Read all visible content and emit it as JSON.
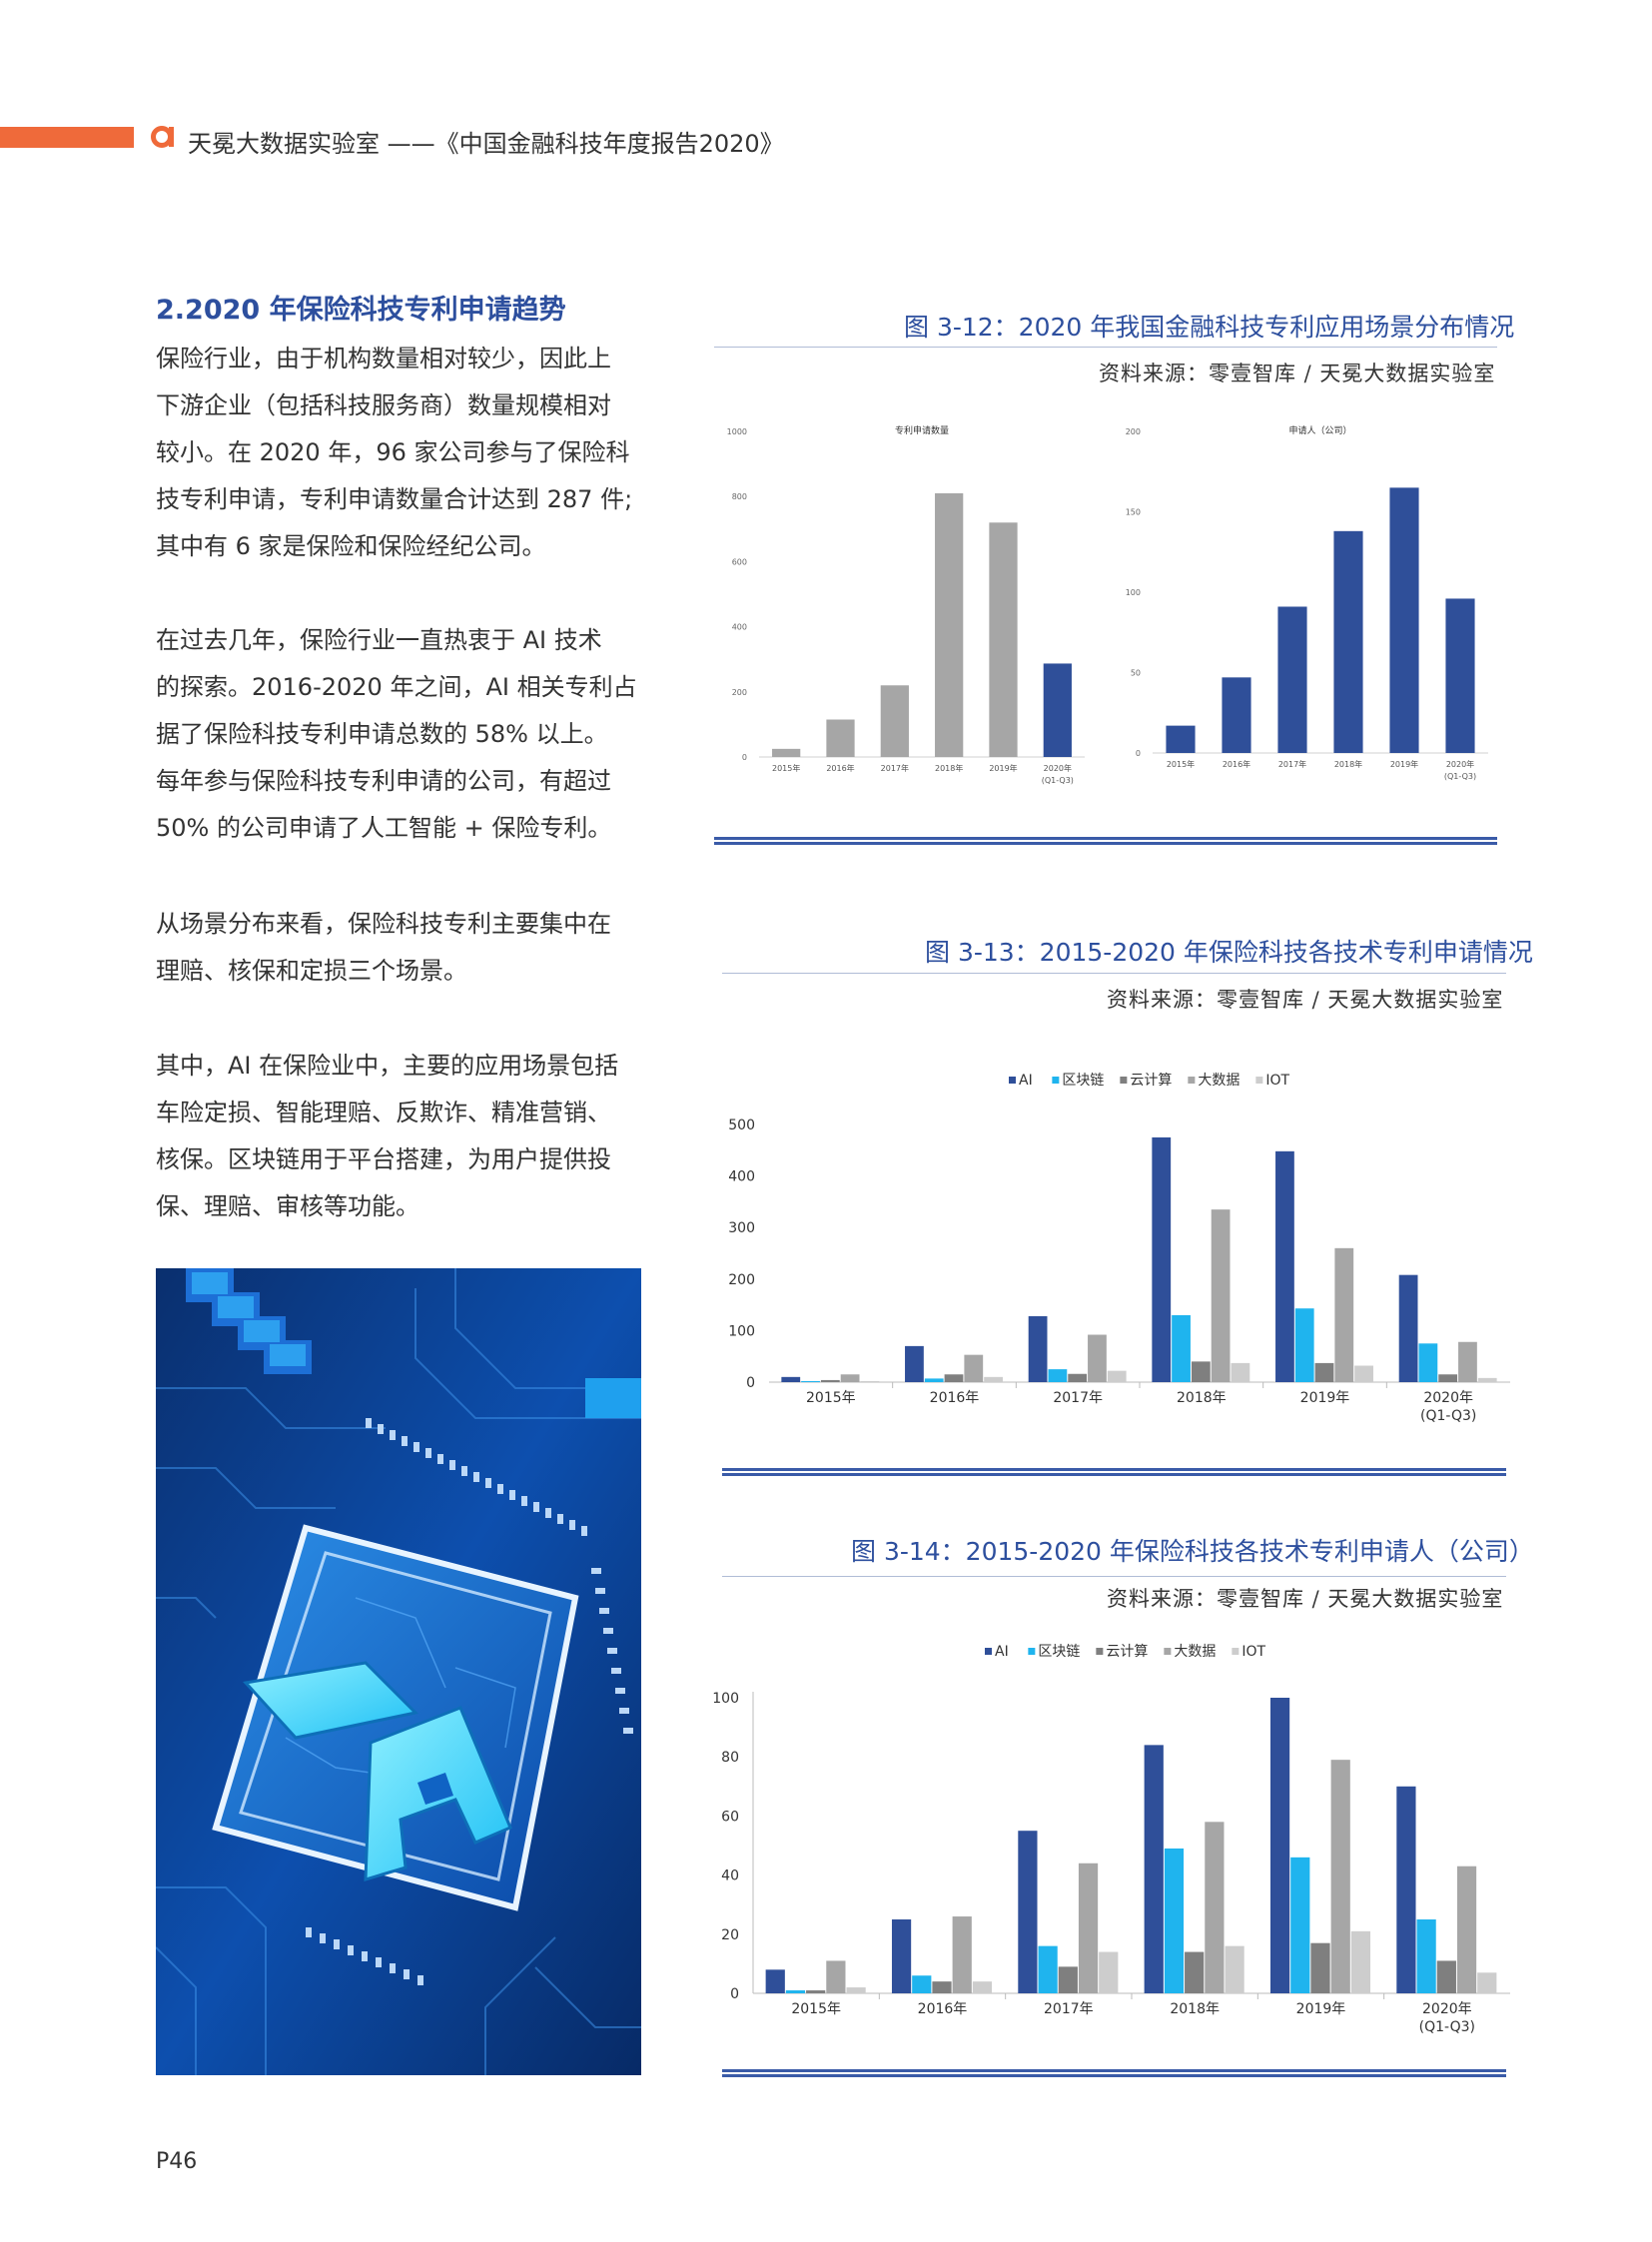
{
  "header": {
    "text": "天冕大数据实验室 ——《中国金融科技年度报告2020》",
    "accent_color": "#ef6a3a",
    "logo_icon": "orange-a-logo-icon"
  },
  "section": {
    "title": "2.2020 年保险科技专利申请趋势",
    "paragraphs": [
      [
        "保险行业，由于机构数量相对较少，因此上",
        "下游企业（包括科技服务商）数量规模相对",
        "较小。在 2020 年，96 家公司参与了保险科",
        "技专利申请，专利申请数量合计达到 287 件;",
        "其中有 6 家是保险和保险经纪公司。"
      ],
      [
        "在过去几年，保险行业一直热衷于 AI 技术",
        "的探索。2016-2020 年之间，AI 相关专利占",
        "据了保险科技专利申请总数的 58% 以上。",
        "每年参与保险科技专利申请的公司，有超过",
        "50% 的公司申请了人工智能 + 保险专利。"
      ],
      [
        "从场景分布来看，保险科技专利主要集中在",
        "理赔、核保和定损三个场景。"
      ],
      [
        "其中，AI 在保险业中，主要的应用场景包括",
        "车险定损、智能理赔、反欺诈、精准营销、",
        "核保。区块链用于平台搭建，为用户提供投",
        "保、理赔、审核等功能。"
      ]
    ]
  },
  "photo": {
    "icon": "ai-circuit-chip-image",
    "letters": "AI"
  },
  "figures": [
    {
      "title": "图 3-12：2020 年我国金融科技专利应用场景分布情况",
      "source": "资料来源：零壹智库 / 天冕大数据实验室"
    },
    {
      "title": "图 3-13：2015-2020 年保险科技各技术专利申请情况",
      "source": "资料来源：零壹智库 / 天冕大数据实验室"
    },
    {
      "title": "图 3-14：2015-2020 年保险科技各技术专利申请人（公司）",
      "source": "资料来源：零壹智库 / 天冕大数据实验室"
    }
  ],
  "chart_data": [
    {
      "type": "bar",
      "title": "专利申请数量",
      "categories": [
        "2015年",
        "2016年",
        "2017年",
        "2018年",
        "2019年",
        "2020年\n(Q1-Q3)"
      ],
      "values": [
        25,
        115,
        220,
        810,
        720,
        287
      ],
      "ylim": [
        0,
        1000
      ],
      "yticks": [
        0,
        200,
        400,
        600,
        800,
        1000
      ],
      "colors": [
        "#a6a6a6",
        "#a6a6a6",
        "#a6a6a6",
        "#a6a6a6",
        "#a6a6a6",
        "#2f4f99"
      ],
      "grid": false
    },
    {
      "type": "bar",
      "title": "申请人（公司）",
      "categories": [
        "2015年",
        "2016年",
        "2017年",
        "2018年",
        "2019年",
        "2020年\n(Q1-Q3)"
      ],
      "values": [
        17,
        47,
        91,
        138,
        165,
        96
      ],
      "ylim": [
        0,
        200
      ],
      "yticks": [
        0,
        50,
        100,
        150,
        200
      ],
      "colors": [
        "#2f4f99",
        "#2f4f99",
        "#2f4f99",
        "#2f4f99",
        "#2f4f99",
        "#2f4f99"
      ],
      "grid": false
    },
    {
      "type": "bar",
      "categories": [
        "2015年",
        "2016年",
        "2017年",
        "2018年",
        "2019年",
        "2020年\n(Q1-Q3)"
      ],
      "series": [
        {
          "name": "AI",
          "color": "#2f4f99",
          "values": [
            10,
            70,
            128,
            475,
            448,
            208
          ]
        },
        {
          "name": "区块链",
          "color": "#1fb4ee",
          "values": [
            2,
            7,
            25,
            130,
            143,
            75
          ]
        },
        {
          "name": "云计算",
          "color": "#7f7f7f",
          "values": [
            4,
            15,
            16,
            40,
            37,
            15
          ]
        },
        {
          "name": "大数据",
          "color": "#a6a6a6",
          "values": [
            15,
            53,
            92,
            335,
            260,
            78
          ]
        },
        {
          "name": "IOT",
          "color": "#cdcdcd",
          "values": [
            2,
            10,
            22,
            37,
            32,
            8
          ]
        }
      ],
      "ylim": [
        0,
        500
      ],
      "yticks": [
        0,
        100,
        200,
        300,
        400,
        500
      ],
      "legend": "top-center",
      "grid": false
    },
    {
      "type": "bar",
      "categories": [
        "2015年",
        "2016年",
        "2017年",
        "2018年",
        "2019年",
        "2020年\n(Q1-Q3)"
      ],
      "series": [
        {
          "name": "AI",
          "color": "#2f4f99",
          "values": [
            8,
            25,
            55,
            84,
            100,
            70
          ]
        },
        {
          "name": "区块链",
          "color": "#1fb4ee",
          "values": [
            1,
            6,
            16,
            49,
            46,
            25
          ]
        },
        {
          "name": "云计算",
          "color": "#7f7f7f",
          "values": [
            1,
            4,
            9,
            14,
            17,
            11
          ]
        },
        {
          "name": "大数据",
          "color": "#a6a6a6",
          "values": [
            11,
            26,
            44,
            58,
            79,
            43
          ]
        },
        {
          "name": "IOT",
          "color": "#cdcdcd",
          "values": [
            2,
            4,
            14,
            16,
            21,
            7
          ]
        }
      ],
      "ylim": [
        0,
        100
      ],
      "yticks": [
        0,
        20,
        40,
        60,
        80,
        100
      ],
      "legend": "top-center",
      "grid": false
    }
  ],
  "page": {
    "number": "P46"
  }
}
